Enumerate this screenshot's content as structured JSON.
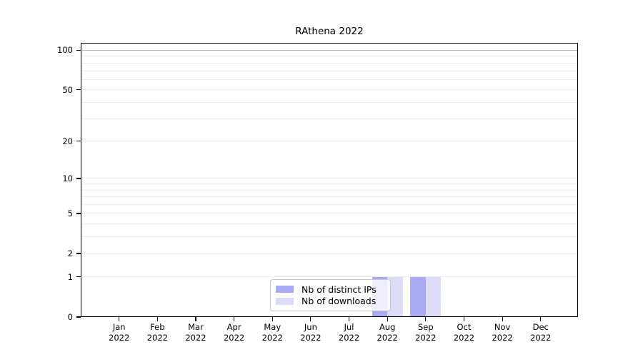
{
  "chart_data": {
    "type": "bar",
    "title": "RAthena 2022",
    "xlabel": "",
    "ylabel": "",
    "categories": [
      "Jan",
      "Feb",
      "Mar",
      "Apr",
      "May",
      "Jun",
      "Jul",
      "Aug",
      "Sep",
      "Oct",
      "Nov",
      "Dec"
    ],
    "year_label": "2022",
    "series": [
      {
        "name": "Nb of distinct IPs",
        "color": "#a9a9f4",
        "values": [
          0,
          0,
          0,
          0,
          0,
          0,
          0,
          1,
          1,
          0,
          0,
          0
        ]
      },
      {
        "name": "Nb of downloads",
        "color": "#dcdcf8",
        "values": [
          0,
          0,
          0,
          0,
          0,
          0,
          0,
          1,
          1,
          0,
          0,
          0
        ]
      }
    ],
    "yscale": "log1p",
    "ylim": [
      0,
      115
    ],
    "yticks": [
      0,
      1,
      2,
      5,
      10,
      20,
      50,
      100
    ],
    "gridline_values": [
      1,
      2,
      3,
      4,
      5,
      6,
      7,
      8,
      9,
      10,
      20,
      30,
      40,
      50,
      60,
      70,
      80,
      90,
      100
    ],
    "grid": "horizontal",
    "gridline_color_minor": "#ededed",
    "gridline_color_top": "#c2c2c2",
    "legend_position": "bottom-center"
  }
}
